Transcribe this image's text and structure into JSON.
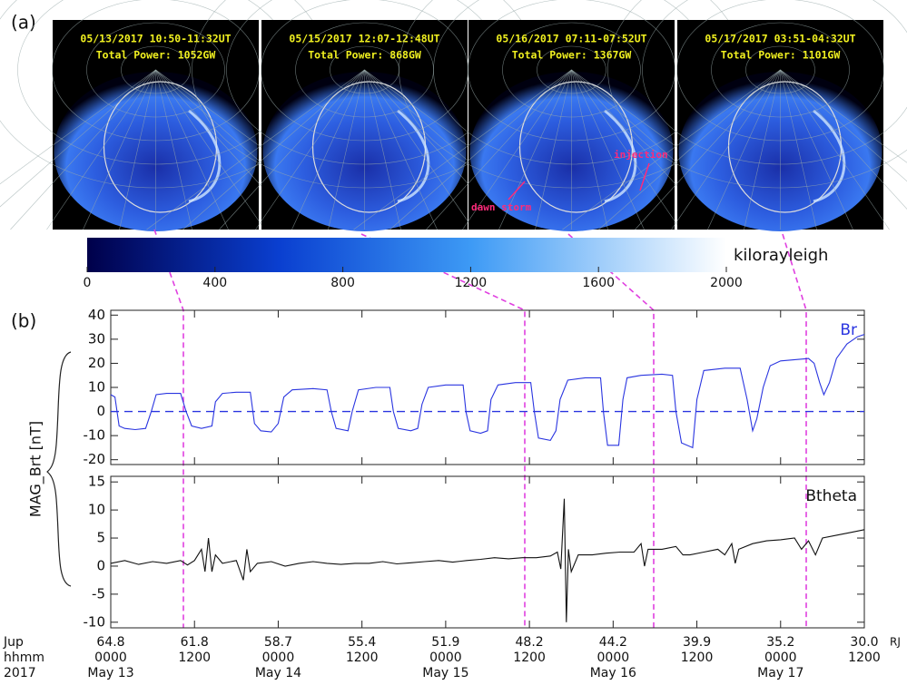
{
  "panel_a": {
    "label": "(a)",
    "images": [
      {
        "time": "05/13/2017 10:50-11:32UT",
        "power": "Total Power: 1052GW"
      },
      {
        "time": "05/15/2017 12:07-12:48UT",
        "power": "Total Power: 868GW"
      },
      {
        "time": "05/16/2017 07:11-07:52UT",
        "power": "Total Power: 1367GW"
      },
      {
        "time": "05/17/2017 03:51-04:32UT",
        "power": "Total Power: 1101GW"
      }
    ],
    "annotations": [
      "dawn storm",
      "injection"
    ]
  },
  "colorbar": {
    "label": "kilorayleigh",
    "lim": [
      0,
      2000
    ],
    "ticks": [
      0,
      400,
      800,
      1200,
      1600,
      2000
    ]
  },
  "panel_b": {
    "label": "(b)",
    "ylabel": "MAG_Brt [nT]",
    "row_titles": [
      "Jup",
      "hhmm",
      "2017"
    ],
    "unit": "RJ"
  },
  "x_axis": {
    "jup": [
      "64.8",
      "61.8",
      "58.7",
      "55.4",
      "51.9",
      "48.2",
      "44.2",
      "39.9",
      "35.2",
      "30.0"
    ],
    "dates": [
      "May 13",
      null,
      "May 14",
      null,
      "May 15",
      null,
      "May 16",
      null,
      "May 17",
      null
    ]
  },
  "chart_data": [
    {
      "type": "line",
      "xlim": [
        0,
        108
      ],
      "ylim": [
        -22,
        42
      ],
      "yticks": [
        40,
        30,
        20,
        10,
        0,
        -10,
        -20
      ],
      "zero_line": true,
      "xticks": [
        {
          "value": 0,
          "label": "0000"
        },
        {
          "value": 12,
          "label": "1200"
        },
        {
          "value": 24,
          "label": "0000"
        },
        {
          "value": 36,
          "label": "1200"
        },
        {
          "value": 48,
          "label": "0000"
        },
        {
          "value": 60,
          "label": "1200"
        },
        {
          "value": 72,
          "label": "0000"
        },
        {
          "value": 84,
          "label": "1200"
        },
        {
          "value": 96,
          "label": "0000"
        },
        {
          "value": 108,
          "label": "1200"
        }
      ],
      "series": [
        {
          "name": "Br",
          "color": "#2a35e0",
          "x": [
            0,
            0.6,
            1.2,
            2,
            3.5,
            5,
            5.8,
            6.5,
            8,
            10,
            10.8,
            11.6,
            13,
            14.5,
            15,
            16,
            18,
            20,
            20.6,
            21.5,
            23,
            24,
            24.8,
            26,
            29,
            31,
            31.6,
            32.3,
            34,
            34.6,
            35.5,
            38,
            40,
            40.5,
            41.2,
            43,
            44,
            44.6,
            45.5,
            48,
            50.5,
            50.9,
            51.5,
            53,
            54,
            54.5,
            55.5,
            58,
            60.2,
            60.7,
            61.3,
            63,
            63.8,
            64.4,
            65.5,
            68,
            70.2,
            70.6,
            71.2,
            72.8,
            73.4,
            74,
            76,
            79,
            80.5,
            81,
            81.8,
            83.4,
            84,
            85,
            88,
            90.2,
            91.2,
            92,
            92.6,
            93.5,
            94.5,
            96,
            100,
            100.8,
            101.6,
            102.2,
            103,
            104,
            105.5,
            107,
            108
          ],
          "values": [
            7,
            6,
            -6,
            -7,
            -7.5,
            -7,
            0,
            7,
            7.5,
            7.5,
            0,
            -6,
            -7,
            -6,
            4,
            7.5,
            8,
            8,
            -5,
            -8,
            -8.5,
            -5,
            6,
            9,
            9.5,
            9,
            0,
            -7,
            -8,
            0,
            9,
            10,
            10,
            0,
            -7,
            -8,
            -7,
            3,
            10,
            11,
            11,
            0,
            -8,
            -9,
            -8,
            5,
            11,
            12,
            12,
            0,
            -11,
            -12,
            -8,
            5,
            13,
            14,
            14,
            0,
            -14,
            -14,
            5,
            14,
            15,
            15.5,
            15,
            0,
            -13,
            -15,
            5,
            17,
            18,
            18,
            5,
            -8,
            -3,
            10,
            19,
            21,
            22,
            20,
            12,
            7,
            12,
            22,
            28,
            31,
            32
          ]
        }
      ]
    },
    {
      "type": "line",
      "xlim": [
        0,
        108
      ],
      "ylim": [
        -11,
        16
      ],
      "yticks": [
        15,
        10,
        5,
        0,
        -5,
        -10
      ],
      "zero_line": false,
      "xticks": [
        {
          "value": 0,
          "label": "0000"
        },
        {
          "value": 12,
          "label": "1200"
        },
        {
          "value": 24,
          "label": "0000"
        },
        {
          "value": 36,
          "label": "1200"
        },
        {
          "value": 48,
          "label": "0000"
        },
        {
          "value": 60,
          "label": "1200"
        },
        {
          "value": 72,
          "label": "0000"
        },
        {
          "value": 84,
          "label": "1200"
        },
        {
          "value": 96,
          "label": "0000"
        },
        {
          "value": 108,
          "label": "1200"
        }
      ],
      "series": [
        {
          "name": "Btheta",
          "color": "#111111",
          "x": [
            0,
            2,
            4,
            6,
            8,
            10,
            11,
            12,
            13,
            13.5,
            14,
            14.5,
            15,
            16,
            18,
            19,
            19.5,
            20,
            21,
            23,
            25,
            27,
            29,
            31,
            33,
            35,
            37,
            39,
            41,
            43,
            45,
            47,
            49,
            51,
            53,
            55,
            57,
            59,
            61,
            63,
            64,
            64.5,
            65,
            65.3,
            65.6,
            66,
            67,
            69,
            71,
            73,
            75,
            76,
            76.5,
            77,
            79,
            81,
            82,
            83,
            85,
            87,
            88,
            89,
            89.5,
            90,
            92,
            94,
            96,
            98,
            99,
            100,
            101,
            102,
            104,
            106,
            108
          ],
          "values": [
            0.5,
            1,
            0.3,
            0.8,
            0.5,
            1,
            0.2,
            1,
            3,
            -1,
            5,
            -1,
            2,
            0.5,
            1,
            -2.5,
            3,
            -1,
            0.5,
            0.8,
            0,
            0.5,
            0.8,
            0.5,
            0.3,
            0.5,
            0.5,
            0.8,
            0.4,
            0.6,
            0.8,
            1,
            0.7,
            1,
            1.2,
            1.5,
            1.3,
            1.5,
            1.5,
            1.8,
            2.5,
            -0.5,
            12,
            -10,
            3,
            -1,
            2,
            2,
            2.3,
            2.5,
            2.5,
            4,
            0,
            3,
            3,
            3.5,
            2,
            2,
            2.5,
            3,
            2,
            4,
            0.5,
            3,
            4,
            4.5,
            4.7,
            5,
            3,
            4.5,
            2,
            5,
            5.5,
            6,
            6.5
          ]
        }
      ]
    }
  ]
}
